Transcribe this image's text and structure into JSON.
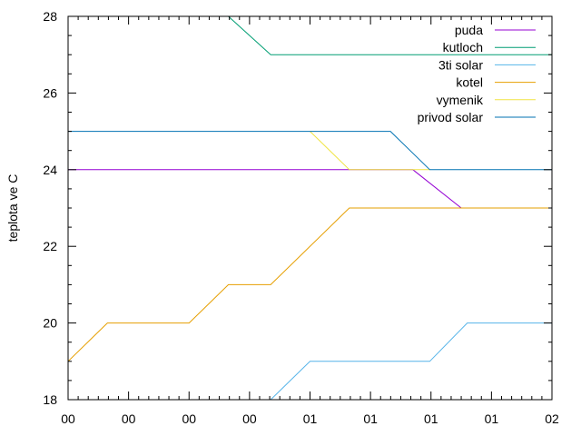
{
  "chart_data": {
    "type": "line",
    "title": "",
    "xlabel": "",
    "ylabel": "teplota ve C",
    "x_ticks": [
      "00",
      "00",
      "00",
      "00",
      "01",
      "01",
      "01",
      "01",
      "02"
    ],
    "xlim": [
      0,
      8
    ],
    "ylim": [
      18,
      28
    ],
    "y_ticks": [
      18,
      20,
      22,
      24,
      26,
      28
    ],
    "grid": false,
    "legend_position": "top-right",
    "series": [
      {
        "name": "puda",
        "color": "#9400d3",
        "points": [
          [
            0,
            24
          ],
          [
            4.65,
            24
          ],
          [
            5.1,
            24
          ],
          [
            5.7,
            24
          ],
          [
            6.5,
            23
          ],
          [
            8,
            23
          ]
        ]
      },
      {
        "name": "kutloch",
        "color": "#009e73",
        "points": [
          [
            2.65,
            28
          ],
          [
            3.35,
            27
          ],
          [
            8,
            27
          ]
        ]
      },
      {
        "name": "3ti solar",
        "color": "#56b4e9",
        "points": [
          [
            3.35,
            18
          ],
          [
            4.0,
            19
          ],
          [
            5.98,
            19
          ],
          [
            6.6,
            20
          ],
          [
            8,
            20
          ]
        ]
      },
      {
        "name": "kotel",
        "color": "#e69f00",
        "points": [
          [
            0,
            19
          ],
          [
            0.65,
            20
          ],
          [
            2.0,
            20
          ],
          [
            2.65,
            21
          ],
          [
            3.35,
            21
          ],
          [
            4.65,
            23
          ],
          [
            8,
            23
          ]
        ]
      },
      {
        "name": "vymenik",
        "color": "#f0e442",
        "points": [
          [
            4.0,
            25
          ],
          [
            4.65,
            24
          ],
          [
            5.98,
            24
          ]
        ]
      },
      {
        "name": "privod solar",
        "color": "#0072b2",
        "points": [
          [
            0,
            25
          ],
          [
            5.33,
            25
          ],
          [
            5.98,
            24
          ],
          [
            8,
            24
          ]
        ]
      }
    ]
  }
}
